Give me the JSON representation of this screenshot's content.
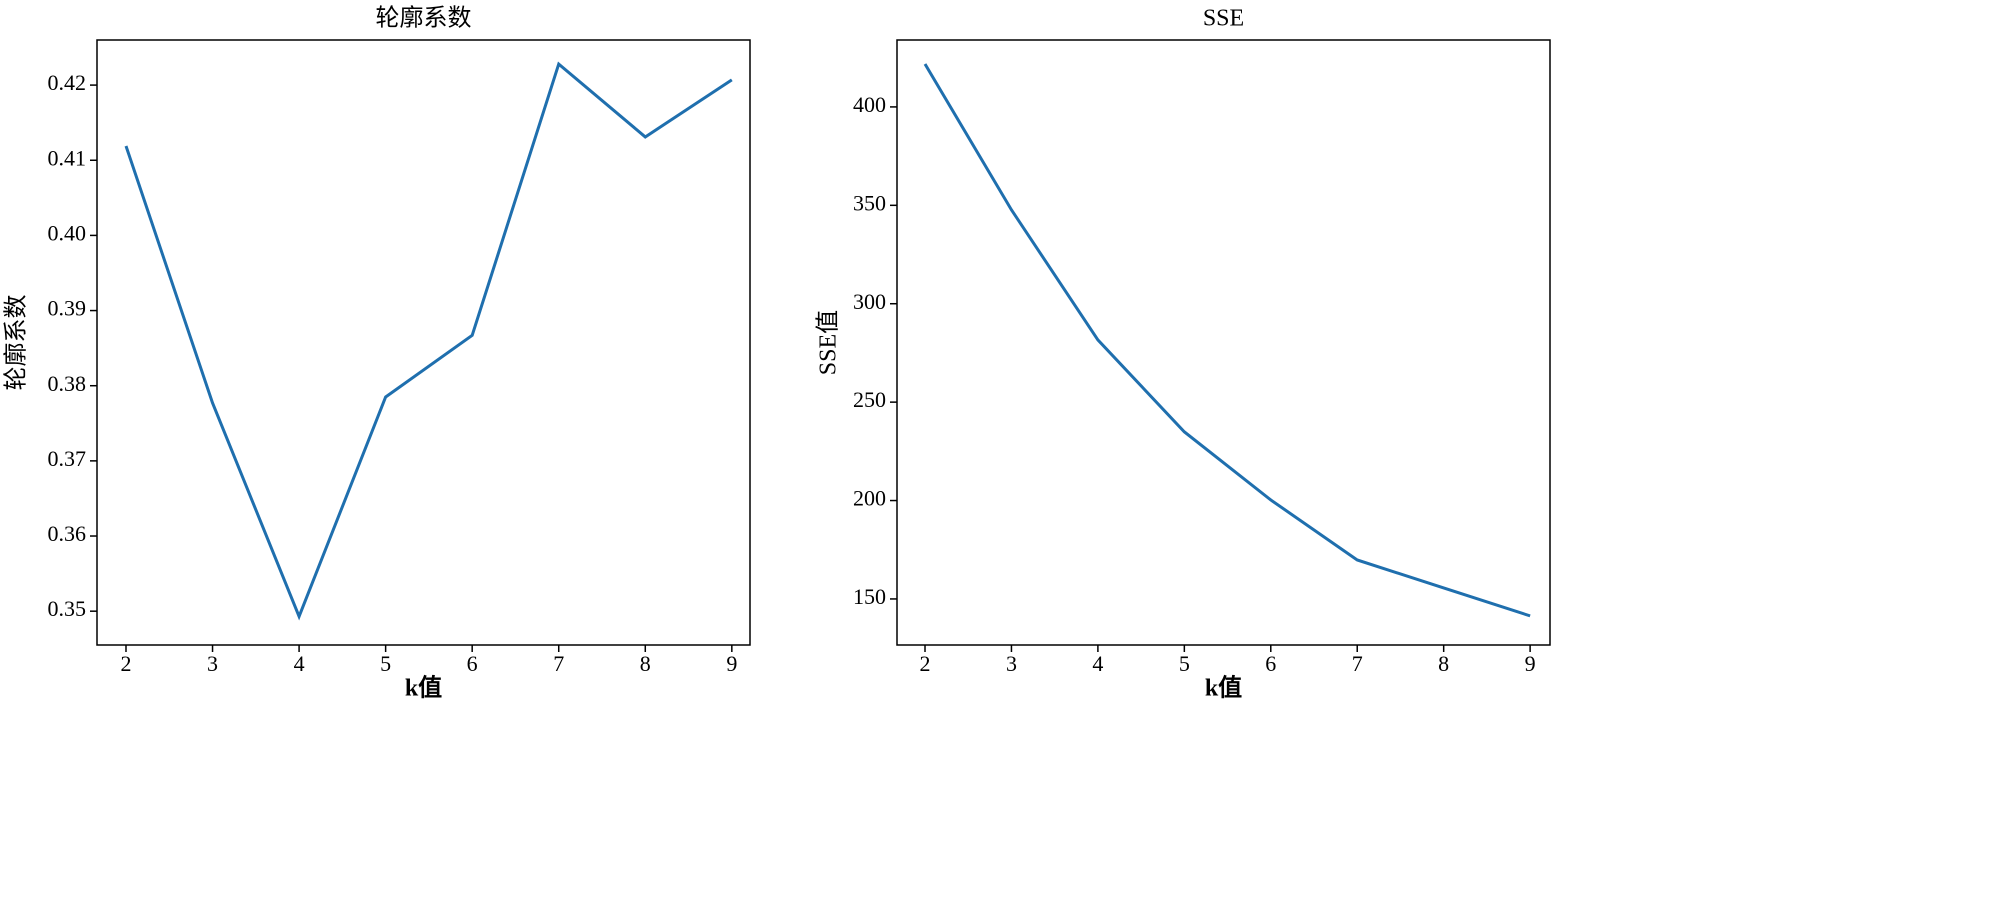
{
  "chart_data": [
    {
      "type": "line",
      "title": "轮廓系数",
      "xlabel": "k值",
      "ylabel": "轮廓系数",
      "x": [
        2,
        3,
        4,
        5,
        6,
        7,
        8,
        9
      ],
      "series": [
        {
          "color": "#1f6fae",
          "values": [
            0.4119,
            0.3777,
            0.3493,
            0.3785,
            0.3867,
            0.4228,
            0.4131,
            0.4207
          ]
        }
      ],
      "xlim": [
        1.665,
        9.21
      ],
      "xticks": [
        2,
        3,
        4,
        5,
        6,
        7,
        8,
        9
      ],
      "ylim": [
        0.3455,
        0.426
      ],
      "yticks": [
        0.35,
        0.36,
        0.37,
        0.38,
        0.39,
        {
          "value": 0.4,
          "label": "0.40"
        },
        0.41,
        0.42
      ]
    },
    {
      "type": "line",
      "title": "SSE",
      "xlabel": "k值",
      "ylabel": "SSE值",
      "x": [
        2,
        3,
        4,
        5,
        6,
        7,
        8,
        9
      ],
      "series": [
        {
          "color": "#1f6fae",
          "values": [
            421.8,
            347.7,
            281.6,
            234.9,
            200.3,
            169.8,
            155.6,
            141.4
          ]
        }
      ],
      "xlim": [
        1.676,
        9.23
      ],
      "xticks": [
        2,
        3,
        4,
        5,
        6,
        7,
        8,
        9
      ],
      "ylim": [
        126.6,
        434
      ],
      "yticks": [
        150,
        200,
        250,
        300,
        350,
        400
      ]
    }
  ]
}
